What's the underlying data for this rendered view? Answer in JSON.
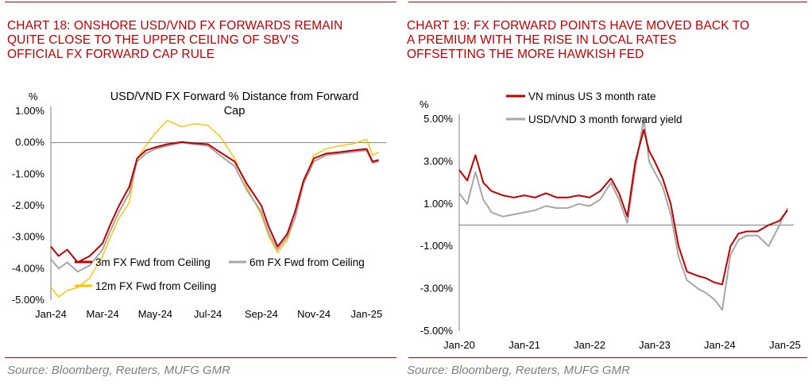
{
  "colors": {
    "title_red": "#c00000",
    "series_3m": "#c00000",
    "series_6m": "#a6a6a6",
    "series_12m": "#ffc000",
    "vn_us": "#c00000",
    "fwd_yield": "#a6a6a6",
    "source_grey": "#7f7f7f"
  },
  "left": {
    "title_lines": [
      "CHART 18: ONSHORE USD/VND FX FORWARDS REMAIN",
      "QUITE CLOSE TO THE UPPER CEILING OF SBV’S",
      "OFFICIAL FX FORWARD CAP RULE"
    ],
    "source": "Source: Bloomberg, Reuters, MUFG GMR"
  },
  "right": {
    "title_lines": [
      "CHART 19: FX FORWARD POINTS HAVE MOVED BACK TO",
      "A PREMIUM WITH THE RISE IN LOCAL RATES",
      "OFFSETTING THE MORE HAWKISH FED"
    ],
    "source": "Source: Bloomberg, Reuters, MUFG GMR"
  },
  "chart_data": [
    {
      "type": "line",
      "title": "USD/VND FX Forward % Distance from Forward Cap",
      "title_lines": [
        "USD/VND FX Forward % Distance from Forward",
        "Cap"
      ],
      "ylabel": "%",
      "ylim": [
        -5.0,
        1.0
      ],
      "yticks": [
        1.0,
        0.0,
        -1.0,
        -2.0,
        -3.0,
        -4.0,
        -5.0
      ],
      "ytick_labels": [
        "1.00%",
        "0.00%",
        "-1.00%",
        "-2.00%",
        "-3.00%",
        "-4.00%",
        "-5.00%"
      ],
      "xlim": [
        "2024-01-01",
        "2025-01-20"
      ],
      "xtick_labels": [
        "Jan-24",
        "Mar-24",
        "May-24",
        "Jul-24",
        "Sep-24",
        "Nov-24",
        "Jan-25"
      ],
      "xtick_dates": [
        "2024-01-01",
        "2024-03-01",
        "2024-05-01",
        "2024-07-01",
        "2024-09-01",
        "2024-11-01",
        "2025-01-01"
      ],
      "legend": "bottom-left",
      "series": [
        {
          "name": "3m FX Fwd from Ceiling",
          "x": [
            "2024-01-01",
            "2024-01-10",
            "2024-01-20",
            "2024-02-01",
            "2024-02-15",
            "2024-03-01",
            "2024-03-10",
            "2024-03-20",
            "2024-04-01",
            "2024-04-10",
            "2024-04-20",
            "2024-05-01",
            "2024-05-15",
            "2024-06-01",
            "2024-06-15",
            "2024-07-01",
            "2024-07-15",
            "2024-08-01",
            "2024-08-15",
            "2024-09-01",
            "2024-09-10",
            "2024-09-20",
            "2024-10-01",
            "2024-10-10",
            "2024-10-20",
            "2024-11-01",
            "2024-11-15",
            "2024-12-01",
            "2024-12-15",
            "2025-01-01",
            "2025-01-08",
            "2025-01-15"
          ],
          "values": [
            -3.3,
            -3.6,
            -3.4,
            -3.8,
            -3.6,
            -3.2,
            -2.6,
            -2.0,
            -1.4,
            -0.5,
            -0.25,
            -0.15,
            -0.05,
            0.02,
            -0.02,
            -0.05,
            -0.3,
            -0.6,
            -1.3,
            -2.0,
            -2.7,
            -3.3,
            -2.9,
            -2.2,
            -1.2,
            -0.5,
            -0.35,
            -0.3,
            -0.25,
            -0.2,
            -0.6,
            -0.55
          ]
        },
        {
          "name": "6m FX Fwd from Ceiling",
          "x": [
            "2024-01-01",
            "2024-01-10",
            "2024-01-20",
            "2024-02-01",
            "2024-02-15",
            "2024-03-01",
            "2024-03-10",
            "2024-03-20",
            "2024-04-01",
            "2024-04-10",
            "2024-04-20",
            "2024-05-01",
            "2024-05-15",
            "2024-06-01",
            "2024-06-15",
            "2024-07-01",
            "2024-07-15",
            "2024-08-01",
            "2024-08-15",
            "2024-09-01",
            "2024-09-10",
            "2024-09-20",
            "2024-10-01",
            "2024-10-10",
            "2024-10-20",
            "2024-11-01",
            "2024-11-15",
            "2024-12-01",
            "2024-12-15",
            "2025-01-01",
            "2025-01-08",
            "2025-01-15"
          ],
          "values": [
            -3.7,
            -4.0,
            -3.8,
            -4.1,
            -3.9,
            -3.4,
            -2.8,
            -2.2,
            -1.6,
            -0.6,
            -0.35,
            -0.2,
            -0.1,
            0.0,
            -0.05,
            -0.1,
            -0.4,
            -0.75,
            -1.5,
            -2.2,
            -2.9,
            -3.4,
            -3.0,
            -2.4,
            -1.3,
            -0.6,
            -0.4,
            -0.35,
            -0.3,
            -0.25,
            -0.65,
            -0.6
          ]
        },
        {
          "name": "12m FX Fwd from Ceiling",
          "x": [
            "2024-01-01",
            "2024-01-10",
            "2024-01-20",
            "2024-02-01",
            "2024-02-15",
            "2024-03-01",
            "2024-03-10",
            "2024-03-20",
            "2024-04-01",
            "2024-04-10",
            "2024-04-20",
            "2024-05-01",
            "2024-05-15",
            "2024-06-01",
            "2024-06-15",
            "2024-07-01",
            "2024-07-15",
            "2024-08-01",
            "2024-08-15",
            "2024-09-01",
            "2024-09-10",
            "2024-09-20",
            "2024-10-01",
            "2024-10-10",
            "2024-10-20",
            "2024-11-01",
            "2024-11-15",
            "2024-12-01",
            "2024-12-15",
            "2025-01-01",
            "2025-01-08",
            "2025-01-15"
          ],
          "values": [
            -4.6,
            -4.9,
            -4.7,
            -4.6,
            -4.3,
            -3.6,
            -3.0,
            -2.4,
            -1.9,
            -0.5,
            -0.1,
            0.3,
            0.7,
            0.5,
            0.6,
            0.55,
            0.2,
            -0.5,
            -1.4,
            -2.3,
            -3.0,
            -3.5,
            -3.1,
            -2.4,
            -1.3,
            -0.4,
            -0.2,
            -0.1,
            -0.05,
            0.1,
            -0.4,
            -0.3
          ]
        }
      ]
    },
    {
      "type": "line",
      "title": "",
      "ylabel": "%",
      "ylim": [
        -5.0,
        5.0
      ],
      "yticks": [
        5.0,
        3.0,
        1.0,
        -1.0,
        -3.0,
        -5.0
      ],
      "ytick_labels": [
        "5.00%",
        "3.00%",
        "1.00%",
        "-1.00%",
        "-3.00%",
        "-5.00%"
      ],
      "xlim": [
        "2020-01-01",
        "2025-02-01"
      ],
      "xtick_labels": [
        "Jan-20",
        "Jan-21",
        "Jan-22",
        "Jan-23",
        "Jan-24",
        "Jan-25"
      ],
      "xtick_dates": [
        "2020-01-01",
        "2021-01-01",
        "2022-01-01",
        "2023-01-01",
        "2024-01-01",
        "2025-01-01"
      ],
      "legend": "top",
      "series": [
        {
          "name": "VN minus US 3 month rate",
          "x": [
            "2020-01-01",
            "2020-02-15",
            "2020-04-01",
            "2020-05-15",
            "2020-07-01",
            "2020-09-01",
            "2020-11-01",
            "2021-01-01",
            "2021-03-01",
            "2021-05-01",
            "2021-07-01",
            "2021-09-01",
            "2021-11-01",
            "2022-01-01",
            "2022-03-01",
            "2022-05-01",
            "2022-06-15",
            "2022-08-01",
            "2022-09-15",
            "2022-11-01",
            "2022-12-01",
            "2023-01-01",
            "2023-02-15",
            "2023-04-01",
            "2023-05-15",
            "2023-07-01",
            "2023-09-01",
            "2023-10-15",
            "2023-12-01",
            "2024-01-15",
            "2024-03-01",
            "2024-04-15",
            "2024-06-01",
            "2024-08-01",
            "2024-10-01",
            "2024-12-01",
            "2025-01-15"
          ],
          "values": [
            2.6,
            2.1,
            3.3,
            2.0,
            1.6,
            1.4,
            1.3,
            1.4,
            1.3,
            1.5,
            1.3,
            1.3,
            1.4,
            1.3,
            1.6,
            2.2,
            1.5,
            0.4,
            3.0,
            4.5,
            3.5,
            3.0,
            2.2,
            1.0,
            -1.0,
            -2.2,
            -2.4,
            -2.5,
            -2.7,
            -2.8,
            -1.0,
            -0.4,
            -0.3,
            -0.3,
            0.0,
            0.2,
            0.7
          ]
        },
        {
          "name": "USD/VND 3 month forward yield",
          "x": [
            "2020-01-01",
            "2020-02-15",
            "2020-04-01",
            "2020-05-15",
            "2020-07-01",
            "2020-09-01",
            "2020-11-01",
            "2021-01-01",
            "2021-03-01",
            "2021-05-01",
            "2021-07-01",
            "2021-09-01",
            "2021-11-01",
            "2022-01-01",
            "2022-03-01",
            "2022-05-01",
            "2022-06-15",
            "2022-08-01",
            "2022-09-15",
            "2022-11-01",
            "2022-12-01",
            "2023-01-01",
            "2023-02-15",
            "2023-04-01",
            "2023-05-15",
            "2023-07-01",
            "2023-09-01",
            "2023-10-15",
            "2023-12-01",
            "2024-01-15",
            "2024-03-01",
            "2024-04-15",
            "2024-06-01",
            "2024-08-01",
            "2024-10-01",
            "2024-12-01",
            "2025-01-15"
          ],
          "values": [
            1.5,
            1.0,
            2.5,
            1.2,
            0.6,
            0.4,
            0.5,
            0.6,
            0.7,
            0.9,
            0.8,
            0.8,
            1.0,
            0.9,
            1.2,
            2.0,
            1.2,
            0.1,
            2.7,
            5.0,
            3.0,
            2.5,
            1.8,
            0.5,
            -1.5,
            -2.6,
            -3.0,
            -3.2,
            -3.5,
            -4.0,
            -1.4,
            -0.7,
            -0.5,
            -0.5,
            -1.0,
            0.0,
            0.8
          ]
        }
      ]
    }
  ]
}
